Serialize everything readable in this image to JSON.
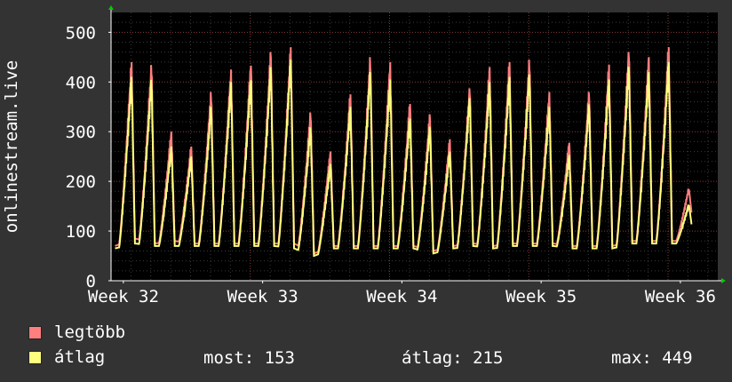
{
  "chart_data": {
    "type": "line",
    "ylabel": "onlinestream.live",
    "ylim": [
      0,
      540
    ],
    "yticks": [
      0,
      100,
      200,
      300,
      400,
      500
    ],
    "x_ticks": [
      "Week 32",
      "Week 33",
      "Week 34",
      "Week 35",
      "Week 36"
    ],
    "x_unit": "day",
    "xlim": [
      0,
      30.5
    ],
    "grid": true,
    "series": [
      {
        "name": "legtöbb",
        "color": "#ff7f7f",
        "values": [
          {
            "day": 0,
            "min": 70,
            "peak": 440
          },
          {
            "day": 1,
            "min": 85,
            "peak": 435
          },
          {
            "day": 2,
            "min": 75,
            "peak": 300
          },
          {
            "day": 3,
            "min": 80,
            "peak": 270
          },
          {
            "day": 4,
            "min": 75,
            "peak": 380
          },
          {
            "day": 5,
            "min": 75,
            "peak": 425
          },
          {
            "day": 6,
            "min": 75,
            "peak": 440
          },
          {
            "day": 7,
            "min": 75,
            "peak": 460
          },
          {
            "day": 8,
            "min": 75,
            "peak": 470
          },
          {
            "day": 9,
            "min": 75,
            "peak": 340
          },
          {
            "day": 10,
            "min": 55,
            "peak": 260
          },
          {
            "day": 11,
            "min": 70,
            "peak": 375
          },
          {
            "day": 12,
            "min": 70,
            "peak": 450
          },
          {
            "day": 13,
            "min": 70,
            "peak": 440
          },
          {
            "day": 14,
            "min": 70,
            "peak": 360
          },
          {
            "day": 15,
            "min": 70,
            "peak": 335
          },
          {
            "day": 16,
            "min": 60,
            "peak": 285
          },
          {
            "day": 17,
            "min": 70,
            "peak": 390
          },
          {
            "day": 18,
            "min": 75,
            "peak": 430
          },
          {
            "day": 19,
            "min": 70,
            "peak": 440
          },
          {
            "day": 20,
            "min": 75,
            "peak": 445
          },
          {
            "day": 21,
            "min": 75,
            "peak": 380
          },
          {
            "day": 22,
            "min": 75,
            "peak": 280
          },
          {
            "day": 23,
            "min": 70,
            "peak": 380
          },
          {
            "day": 24,
            "min": 70,
            "peak": 435
          },
          {
            "day": 25,
            "min": 70,
            "peak": 465
          },
          {
            "day": 26,
            "min": 80,
            "peak": 450
          },
          {
            "day": 27,
            "min": 80,
            "peak": 470
          },
          {
            "day": 28,
            "min": 80,
            "peak": 185
          }
        ]
      },
      {
        "name": "átlag",
        "color": "#ffff7f",
        "values": [
          {
            "day": 0,
            "min": 65,
            "peak": 410
          },
          {
            "day": 1,
            "min": 75,
            "peak": 405
          },
          {
            "day": 2,
            "min": 70,
            "peak": 270
          },
          {
            "day": 3,
            "min": 70,
            "peak": 250
          },
          {
            "day": 4,
            "min": 70,
            "peak": 350
          },
          {
            "day": 5,
            "min": 70,
            "peak": 400
          },
          {
            "day": 6,
            "min": 70,
            "peak": 410
          },
          {
            "day": 7,
            "min": 70,
            "peak": 430
          },
          {
            "day": 8,
            "min": 70,
            "peak": 445
          },
          {
            "day": 9,
            "min": 65,
            "peak": 310
          },
          {
            "day": 10,
            "min": 50,
            "peak": 235
          },
          {
            "day": 11,
            "min": 65,
            "peak": 350
          },
          {
            "day": 12,
            "min": 65,
            "peak": 420
          },
          {
            "day": 13,
            "min": 65,
            "peak": 405
          },
          {
            "day": 14,
            "min": 65,
            "peak": 330
          },
          {
            "day": 15,
            "min": 65,
            "peak": 310
          },
          {
            "day": 16,
            "min": 55,
            "peak": 260
          },
          {
            "day": 17,
            "min": 65,
            "peak": 370
          },
          {
            "day": 18,
            "min": 70,
            "peak": 400
          },
          {
            "day": 19,
            "min": 65,
            "peak": 410
          },
          {
            "day": 20,
            "min": 70,
            "peak": 415
          },
          {
            "day": 21,
            "min": 70,
            "peak": 350
          },
          {
            "day": 22,
            "min": 70,
            "peak": 255
          },
          {
            "day": 23,
            "min": 65,
            "peak": 355
          },
          {
            "day": 24,
            "min": 65,
            "peak": 405
          },
          {
            "day": 25,
            "min": 65,
            "peak": 435
          },
          {
            "day": 26,
            "min": 75,
            "peak": 420
          },
          {
            "day": 27,
            "min": 75,
            "peak": 440
          },
          {
            "day": 28,
            "min": 75,
            "peak": 153
          }
        ]
      }
    ]
  },
  "legend": {
    "max_label": "legtöbb",
    "avg_label": "átlag",
    "max_color": "#ff7f7f",
    "avg_color": "#ffff7f"
  },
  "stats": {
    "now": "most: 153",
    "avg": "átlag: 215",
    "max": "max: 449"
  }
}
